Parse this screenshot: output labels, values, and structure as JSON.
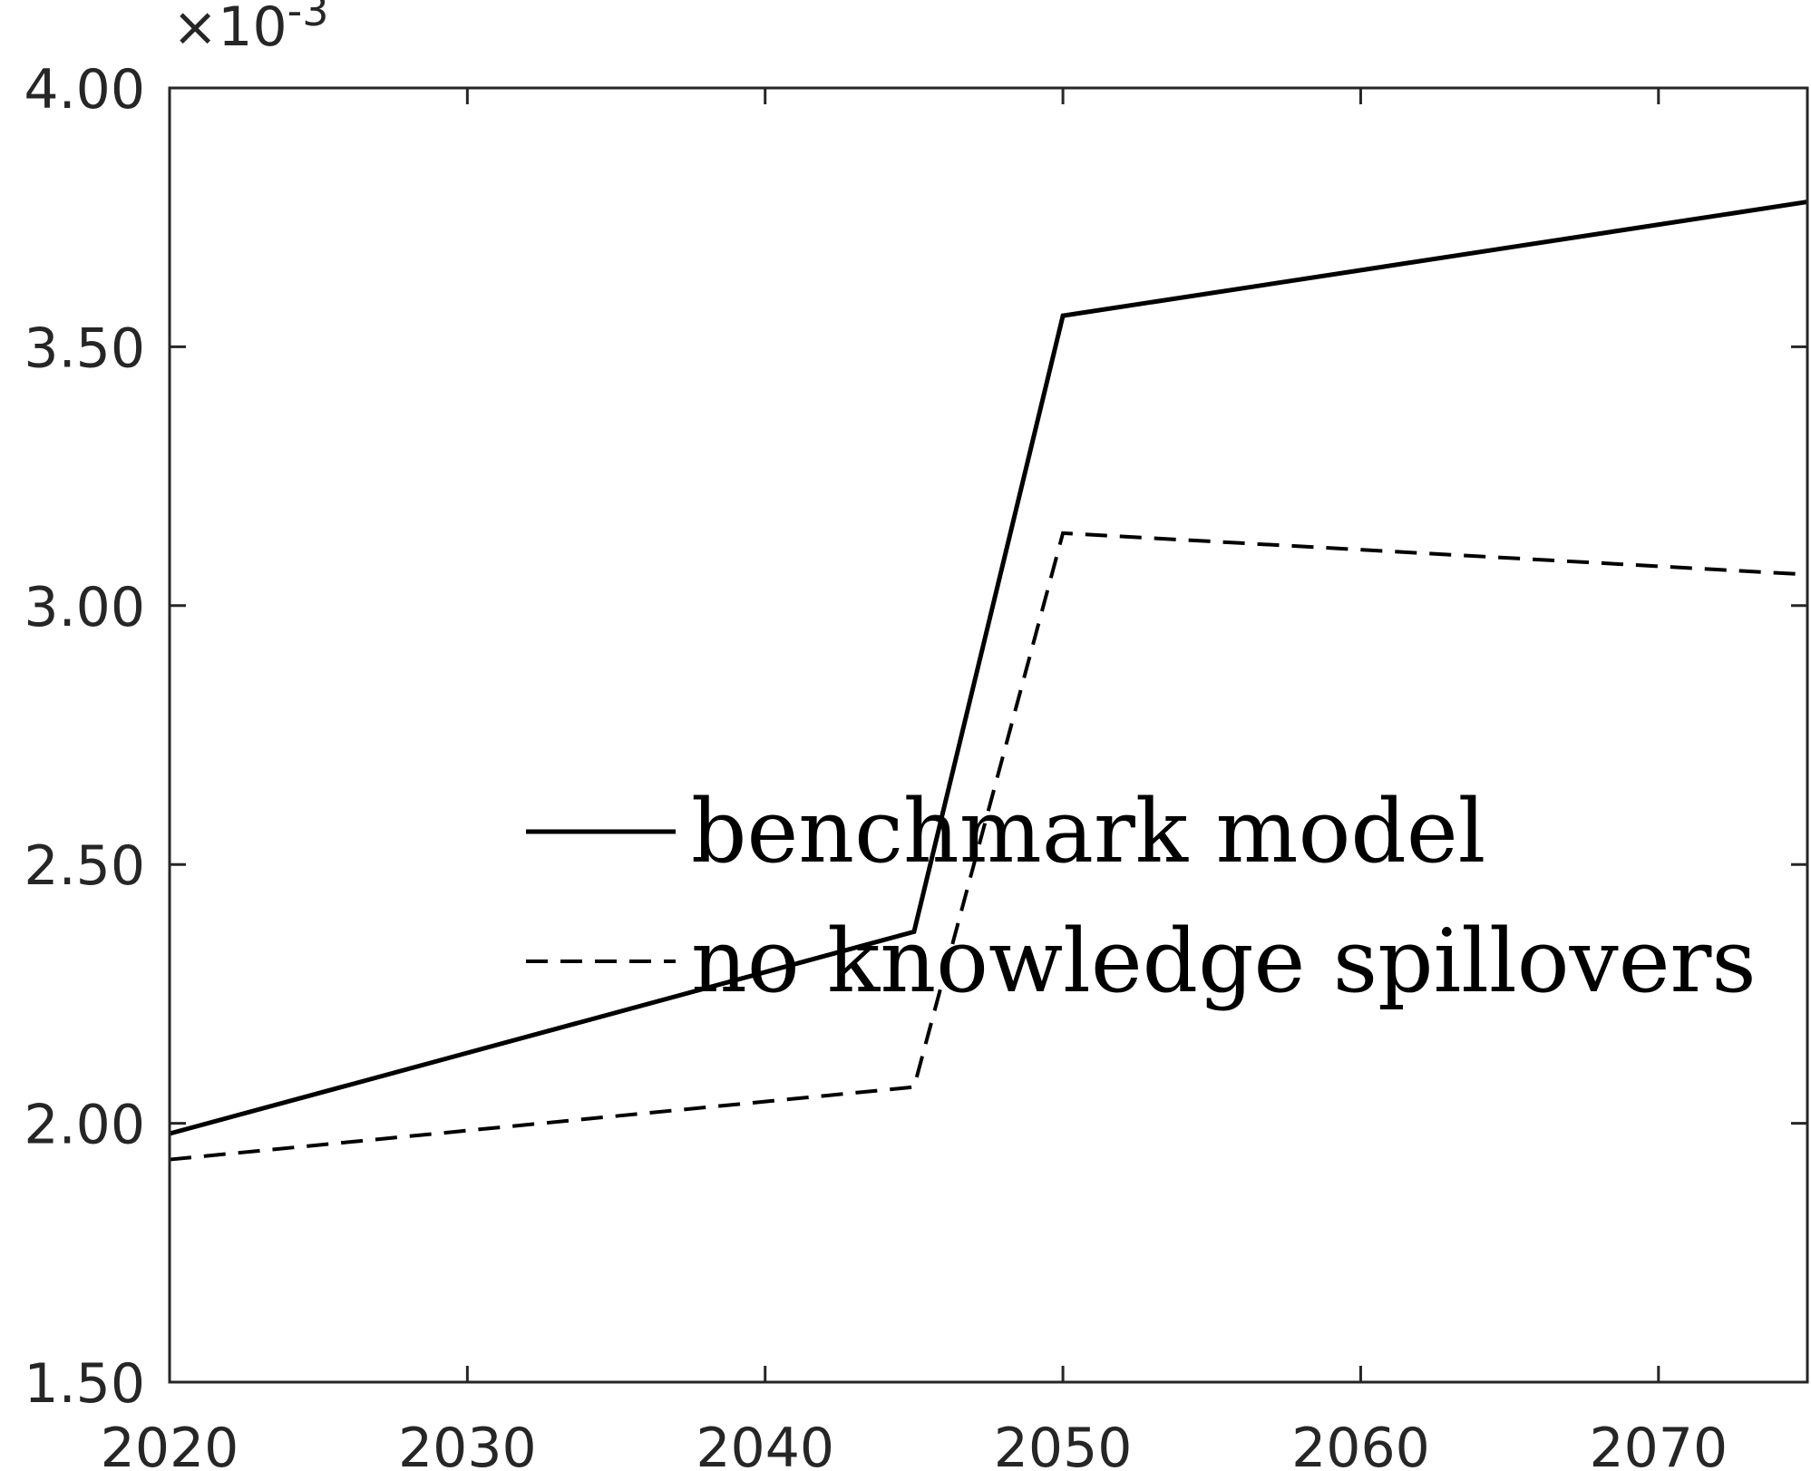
{
  "chart_data": {
    "type": "line",
    "x": [
      2020,
      2045,
      2050,
      2075
    ],
    "xlim": [
      2020,
      2075
    ],
    "ylim": [
      1.5,
      4.0
    ],
    "x_ticks": [
      2020,
      2030,
      2040,
      2050,
      2060,
      2070
    ],
    "y_ticks": [
      1.5,
      2.0,
      2.5,
      3.0,
      3.5,
      4.0
    ],
    "x_tick_labels": [
      "2020",
      "2030",
      "2040",
      "2050",
      "2060",
      "2070"
    ],
    "y_tick_labels": [
      "1.50",
      "2.00",
      "2.50",
      "3.00",
      "3.50",
      "4.00"
    ],
    "y_exponent": {
      "base": "10",
      "power": "-3"
    },
    "series": [
      {
        "name": "benchmark model",
        "style": "solid",
        "color": "#000000",
        "values": [
          1.98,
          2.37,
          3.56,
          3.78
        ]
      },
      {
        "name": "no knowledge spillovers",
        "style": "dashed",
        "color": "#000000",
        "values": [
          1.93,
          2.07,
          3.14,
          3.06
        ]
      }
    ],
    "title": "",
    "xlabel": "",
    "ylabel": "",
    "grid": false,
    "legend_position": "center-right, no box"
  }
}
